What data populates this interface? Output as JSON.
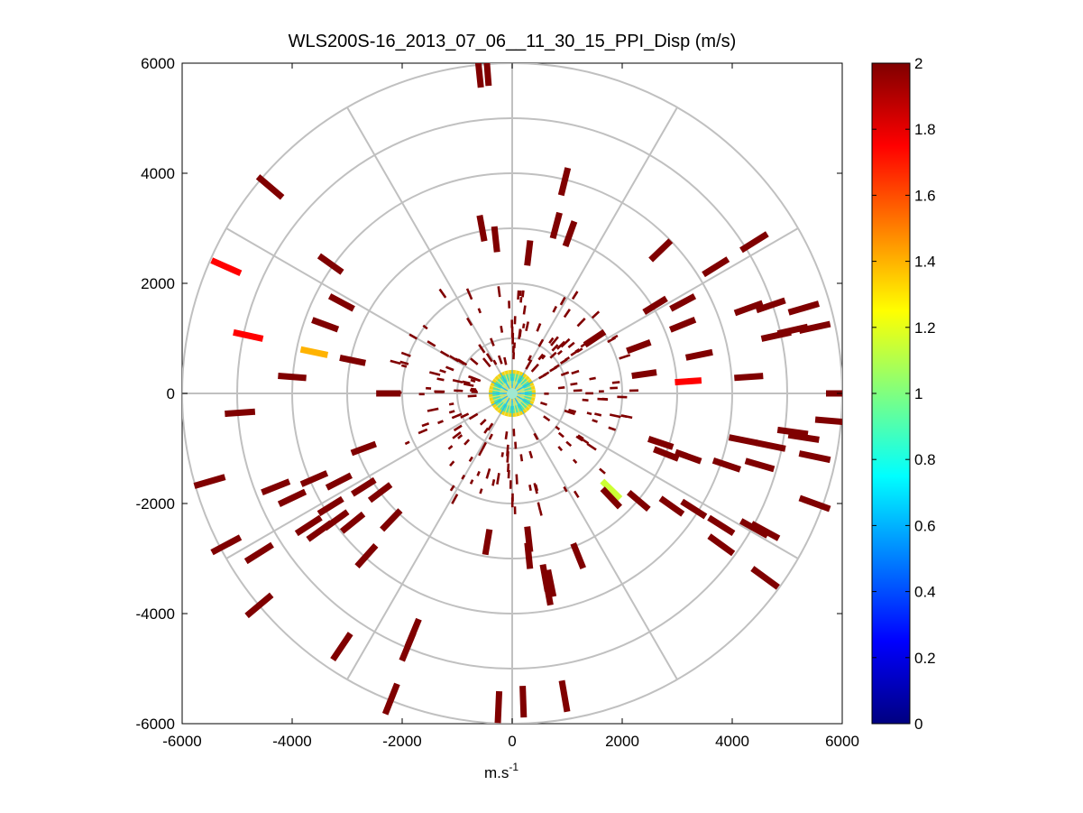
{
  "chart_data": {
    "type": "ppi-polar-scatter",
    "title": "WLS200S-16_2013_07_06__11_30_15_PPI_Disp (m/s)",
    "xlabel": "m.s",
    "xlabel_sup": "-1",
    "ylabel": "",
    "xlim": [
      -6000,
      6000
    ],
    "ylim": [
      -6000,
      6000
    ],
    "xticks": [
      -6000,
      -4000,
      -2000,
      0,
      2000,
      4000,
      6000
    ],
    "yticks": [
      6000,
      4000,
      2000,
      0,
      -2000,
      -4000,
      -6000
    ],
    "xtick_labels": [
      "-6000",
      "-4000",
      "-2000",
      "0",
      "2000",
      "4000",
      "6000"
    ],
    "ytick_labels": [
      "6000",
      "4000",
      "2000",
      "0",
      "-2000",
      "-4000",
      "-6000"
    ],
    "polar_grid": {
      "ring_radii_m": [
        1000,
        2000,
        3000,
        4000,
        5000,
        6000
      ],
      "spoke_angles_deg": [
        0,
        30,
        60,
        90,
        120,
        150,
        180,
        210,
        240,
        270,
        300,
        330
      ]
    },
    "colorbar": {
      "colormap": "jet",
      "range": [
        0,
        2
      ],
      "ticks": [
        0,
        0.2,
        0.4,
        0.6,
        0.8,
        1,
        1.2,
        1.4,
        1.6,
        1.8,
        2
      ],
      "tick_labels": [
        "0",
        "0.2",
        "0.4",
        "0.6",
        "0.8",
        "1",
        "1.2",
        "1.4",
        "1.6",
        "1.8",
        "2"
      ]
    },
    "points": [
      {
        "x": -600,
        "y": 5850,
        "v": 2
      },
      {
        "x": -450,
        "y": 5880,
        "v": 2
      },
      {
        "x": -4400,
        "y": 3750,
        "v": 2
      },
      {
        "x": 950,
        "y": 3850,
        "v": 2
      },
      {
        "x": -5200,
        "y": 2300,
        "v": 1.75
      },
      {
        "x": -4800,
        "y": 1050,
        "v": 1.75
      },
      {
        "x": -3600,
        "y": 750,
        "v": 1.4
      },
      {
        "x": 3200,
        "y": 220,
        "v": 1.75
      },
      {
        "x": 1800,
        "y": -1750,
        "v": 1.15
      },
      {
        "x": -550,
        "y": 3000,
        "v": 2
      },
      {
        "x": 800,
        "y": 3050,
        "v": 2
      },
      {
        "x": 1050,
        "y": 2900,
        "v": 2
      },
      {
        "x": 2700,
        "y": 2600,
        "v": 2
      },
      {
        "x": 4400,
        "y": 2750,
        "v": 2
      },
      {
        "x": -3300,
        "y": 2350,
        "v": 2
      },
      {
        "x": -300,
        "y": 2800,
        "v": 2
      },
      {
        "x": 300,
        "y": 2550,
        "v": 2
      },
      {
        "x": 3700,
        "y": 2300,
        "v": 2
      },
      {
        "x": -3100,
        "y": 1650,
        "v": 2
      },
      {
        "x": -3400,
        "y": 1250,
        "v": 2
      },
      {
        "x": 2600,
        "y": 1600,
        "v": 2
      },
      {
        "x": 3100,
        "y": 1650,
        "v": 2
      },
      {
        "x": 4300,
        "y": 1550,
        "v": 2
      },
      {
        "x": 4700,
        "y": 1600,
        "v": 2
      },
      {
        "x": 3100,
        "y": 1250,
        "v": 2
      },
      {
        "x": 5300,
        "y": 1550,
        "v": 2
      },
      {
        "x": 5500,
        "y": 1200,
        "v": 2
      },
      {
        "x": 5100,
        "y": 1150,
        "v": 2
      },
      {
        "x": 4800,
        "y": 1050,
        "v": 2
      },
      {
        "x": 2300,
        "y": 850,
        "v": 2
      },
      {
        "x": 1500,
        "y": 1000,
        "v": 2
      },
      {
        "x": 3400,
        "y": 700,
        "v": 2
      },
      {
        "x": -2900,
        "y": 600,
        "v": 2
      },
      {
        "x": -4000,
        "y": 300,
        "v": 2
      },
      {
        "x": 2400,
        "y": 350,
        "v": 2
      },
      {
        "x": 4300,
        "y": 300,
        "v": 2
      },
      {
        "x": -2250,
        "y": 0,
        "v": 2
      },
      {
        "x": 6000,
        "y": 0,
        "v": 2
      },
      {
        "x": -4950,
        "y": -350,
        "v": 2
      },
      {
        "x": 5800,
        "y": -500,
        "v": 2
      },
      {
        "x": 5100,
        "y": -700,
        "v": 2
      },
      {
        "x": 5300,
        "y": -800,
        "v": 2
      },
      {
        "x": 2700,
        "y": -900,
        "v": 2
      },
      {
        "x": 4200,
        "y": -850,
        "v": 2
      },
      {
        "x": 4700,
        "y": -950,
        "v": 2
      },
      {
        "x": 2800,
        "y": -1100,
        "v": 2
      },
      {
        "x": -2700,
        "y": -1000,
        "v": 2
      },
      {
        "x": 5500,
        "y": -1150,
        "v": 2
      },
      {
        "x": 3200,
        "y": -1150,
        "v": 2
      },
      {
        "x": 3900,
        "y": -1300,
        "v": 2
      },
      {
        "x": 4500,
        "y": -1300,
        "v": 2
      },
      {
        "x": -5500,
        "y": -1600,
        "v": 2
      },
      {
        "x": -4300,
        "y": -1700,
        "v": 2
      },
      {
        "x": -3600,
        "y": -1550,
        "v": 2
      },
      {
        "x": -3150,
        "y": -1600,
        "v": 2
      },
      {
        "x": -2700,
        "y": -1700,
        "v": 2
      },
      {
        "x": -2400,
        "y": -1800,
        "v": 2
      },
      {
        "x": -4000,
        "y": -1900,
        "v": 2
      },
      {
        "x": -3300,
        "y": -2050,
        "v": 2
      },
      {
        "x": 1800,
        "y": -1900,
        "v": 2
      },
      {
        "x": 2300,
        "y": -1950,
        "v": 2
      },
      {
        "x": 3300,
        "y": -2100,
        "v": 2
      },
      {
        "x": 2900,
        "y": -2050,
        "v": 2
      },
      {
        "x": -3700,
        "y": -2400,
        "v": 2
      },
      {
        "x": -3500,
        "y": -2500,
        "v": 2
      },
      {
        "x": -2200,
        "y": -2300,
        "v": 2
      },
      {
        "x": -2900,
        "y": -2350,
        "v": 2
      },
      {
        "x": -3200,
        "y": -2300,
        "v": 2
      },
      {
        "x": 3800,
        "y": -2400,
        "v": 2
      },
      {
        "x": 4400,
        "y": -2450,
        "v": 2
      },
      {
        "x": 4600,
        "y": -2500,
        "v": 2
      },
      {
        "x": 5500,
        "y": -2000,
        "v": 2
      },
      {
        "x": -5200,
        "y": -2750,
        "v": 2
      },
      {
        "x": -4600,
        "y": -2900,
        "v": 2
      },
      {
        "x": 3800,
        "y": -2750,
        "v": 2
      },
      {
        "x": -2650,
        "y": -2950,
        "v": 2
      },
      {
        "x": 300,
        "y": -2650,
        "v": 2
      },
      {
        "x": -450,
        "y": -2700,
        "v": 2
      },
      {
        "x": 300,
        "y": -2950,
        "v": 2
      },
      {
        "x": 1200,
        "y": -2950,
        "v": 2
      },
      {
        "x": 600,
        "y": -3350,
        "v": 2
      },
      {
        "x": 700,
        "y": -3450,
        "v": 2
      },
      {
        "x": 650,
        "y": -3600,
        "v": 2
      },
      {
        "x": 4600,
        "y": -3350,
        "v": 2
      },
      {
        "x": -4600,
        "y": -3850,
        "v": 2
      },
      {
        "x": -1800,
        "y": -4350,
        "v": 2
      },
      {
        "x": -3100,
        "y": -4600,
        "v": 2
      },
      {
        "x": -1900,
        "y": -4600,
        "v": 2
      },
      {
        "x": -2200,
        "y": -5550,
        "v": 2
      },
      {
        "x": -250,
        "y": -5700,
        "v": 2
      },
      {
        "x": 200,
        "y": -5600,
        "v": 2
      },
      {
        "x": 950,
        "y": -5500,
        "v": 2
      }
    ]
  }
}
